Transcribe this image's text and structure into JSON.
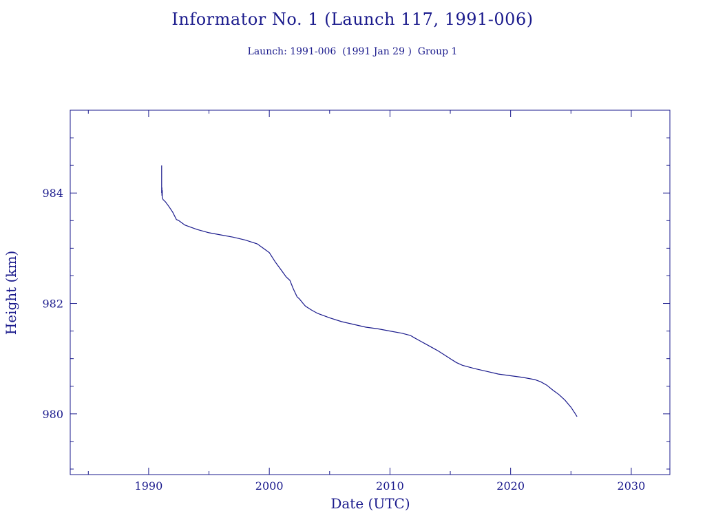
{
  "title": "Informator No. 1 (Launch 117, 1991-006)",
  "subtitle": "Launch: 1991-006  (1991 Jan 29 )  Group 1",
  "colors": {
    "ink": "#1a1a8c",
    "background": "#ffffff"
  },
  "chart_data": {
    "type": "line",
    "title": "Informator No. 1 (Launch 117, 1991-006)",
    "subtitle": "Launch: 1991-006  (1991 Jan 29 )  Group 1",
    "xlabel": "Date (UTC)",
    "ylabel": "Height (km)",
    "xlim": [
      1983.5,
      2033.2
    ],
    "ylim": [
      978.9,
      985.5
    ],
    "xticks": [
      1990,
      2000,
      2010,
      2020,
      2030
    ],
    "xtick_labels": [
      "1990",
      "2000",
      "2010",
      "2020",
      "2030"
    ],
    "yticks": [
      980,
      982,
      984
    ],
    "ytick_labels": [
      "980",
      "982",
      "984"
    ],
    "grid": false,
    "series": [
      {
        "x": [
          1991.08,
          1991.08,
          1991.1,
          1991.1,
          1991.13,
          1991.13,
          1991.2,
          1991.4,
          1991.7,
          1992.0,
          1992.3,
          1992.5,
          1993.0,
          1993.5,
          1994.0,
          1995.0,
          1996.0,
          1997.0,
          1998.0,
          1999.0,
          1999.5,
          2000.0,
          2000.5,
          2001.0,
          2001.4,
          2001.7,
          2002.0,
          2002.3,
          2002.5,
          2002.8,
          2003.0,
          2003.5,
          2004.0,
          2005.0,
          2006.0,
          2007.0,
          2008.0,
          2009.0,
          2010.0,
          2011.0,
          2011.7,
          2012.0,
          2012.5,
          2013.0,
          2013.5,
          2014.0,
          2014.5,
          2015.0,
          2015.5,
          2016.0,
          2017.0,
          2018.0,
          2019.0,
          2020.0,
          2021.0,
          2022.0,
          2022.5,
          2023.0,
          2023.5,
          2024.0,
          2024.5,
          2025.0,
          2025.3,
          2025.5
        ],
        "y": [
          984.5,
          984.0,
          984.1,
          983.95,
          984.05,
          983.92,
          983.88,
          983.84,
          983.75,
          983.65,
          983.52,
          983.5,
          983.42,
          983.38,
          983.34,
          983.28,
          983.24,
          983.2,
          983.15,
          983.08,
          983.0,
          982.92,
          982.75,
          982.6,
          982.48,
          982.42,
          982.26,
          982.12,
          982.08,
          982.0,
          981.95,
          981.88,
          981.82,
          981.74,
          981.67,
          981.62,
          981.57,
          981.54,
          981.5,
          981.46,
          981.42,
          981.38,
          981.32,
          981.26,
          981.2,
          981.14,
          981.07,
          981.0,
          980.93,
          980.88,
          980.82,
          980.77,
          980.72,
          980.69,
          980.66,
          980.62,
          980.58,
          980.52,
          980.43,
          980.35,
          980.25,
          980.12,
          980.02,
          979.95
        ]
      }
    ]
  }
}
